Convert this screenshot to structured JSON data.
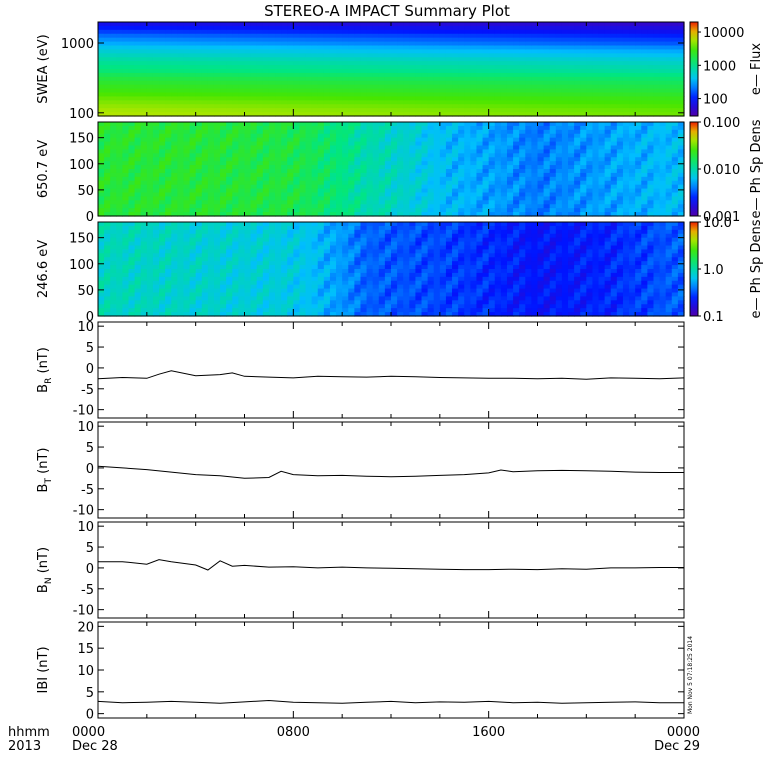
{
  "chart_data": {
    "title": "STEREO-A IMPACT Summary Plot",
    "x_axis": {
      "unit_label": "hhmm",
      "year_label": "2013",
      "ticks": [
        "0000",
        "0800",
        "1600",
        "0000"
      ],
      "date_labels": [
        "Dec 28",
        "",
        "",
        "Dec 29"
      ],
      "range_hours": [
        0,
        24
      ]
    },
    "stamp": "Mon Nov  5 07:18:25 2014",
    "panels": [
      {
        "type": "heatmap",
        "ylabel": "SWEA (eV)",
        "yscale": "log",
        "ylim": [
          90,
          2000
        ],
        "yticks": [
          "100",
          "1000"
        ],
        "ytick_values": [
          100,
          1000
        ],
        "colorbar": {
          "label": "e— Flux",
          "ticks": [
            "100",
            "1000",
            "10000"
          ],
          "tick_values": [
            100,
            1000,
            10000
          ],
          "range": [
            30,
            20000
          ],
          "scale": "log"
        },
        "description_values": {
          "energy_eV": [
            100,
            200,
            400,
            700,
            1000,
            1500,
            2000
          ],
          "flux_at_start": [
            6000,
            3000,
            1200,
            600,
            300,
            120,
            60
          ],
          "flux_at_end": [
            4000,
            2000,
            800,
            350,
            150,
            70,
            40
          ]
        }
      },
      {
        "type": "heatmap",
        "ylabel": "650.7 eV",
        "ylim": [
          0,
          180
        ],
        "yticks": [
          "0",
          "50",
          "100",
          "150"
        ],
        "ytick_values": [
          0,
          50,
          100,
          150
        ],
        "colorbar": {
          "label": "e— Ph Sp Dens",
          "ticks": [
            "0.001",
            "0.010",
            "0.100"
          ],
          "tick_values": [
            0.001,
            0.01,
            0.1
          ],
          "range": [
            0.001,
            0.1
          ],
          "scale": "log"
        },
        "description_values": {
          "hours": [
            0,
            4,
            8,
            11,
            14,
            18,
            21,
            24
          ],
          "density": [
            0.02,
            0.02,
            0.018,
            0.01,
            0.006,
            0.004,
            0.005,
            0.006
          ]
        }
      },
      {
        "type": "heatmap",
        "ylabel": "246.6 eV",
        "ylim": [
          0,
          180
        ],
        "yticks": [
          "0",
          "50",
          "100",
          "150"
        ],
        "ytick_values": [
          0,
          50,
          100,
          150
        ],
        "colorbar": {
          "label": "e— Ph Sp Dens",
          "ticks": [
            "0.1",
            "1.0",
            "10.0"
          ],
          "tick_values": [
            0.1,
            1,
            10
          ],
          "range": [
            0.1,
            10
          ],
          "scale": "log"
        },
        "description_values": {
          "hours": [
            0,
            4,
            8,
            11,
            14,
            18,
            21,
            24
          ],
          "density": [
            0.9,
            0.8,
            0.7,
            0.35,
            0.3,
            0.22,
            0.25,
            0.35
          ]
        }
      },
      {
        "type": "line",
        "ylabel_main": "B",
        "ylabel_sub": "R",
        "ylabel_unit": " (nT)",
        "ylim": [
          -12,
          11
        ],
        "yticks": [
          "-10",
          "-5",
          "0",
          "5",
          "10"
        ],
        "ytick_values": [
          -10,
          -5,
          0,
          5,
          10
        ],
        "x": [
          0,
          1,
          2,
          2.5,
          3,
          4,
          5,
          5.5,
          6,
          7,
          8,
          9,
          10,
          11,
          12,
          13,
          14,
          15,
          16,
          17,
          18,
          19,
          20,
          21,
          22,
          23,
          24
        ],
        "y": [
          -2.6,
          -2.3,
          -2.5,
          -1.5,
          -0.7,
          -1.9,
          -1.6,
          -1.2,
          -2.0,
          -2.2,
          -2.4,
          -2.0,
          -2.1,
          -2.2,
          -2.0,
          -2.1,
          -2.3,
          -2.4,
          -2.5,
          -2.5,
          -2.6,
          -2.5,
          -2.7,
          -2.4,
          -2.5,
          -2.6,
          -2.4
        ]
      },
      {
        "type": "line",
        "ylabel_main": "B",
        "ylabel_sub": "T",
        "ylabel_unit": " (nT)",
        "ylim": [
          -12,
          11
        ],
        "yticks": [
          "-10",
          "-5",
          "0",
          "5",
          "10"
        ],
        "ytick_values": [
          -10,
          -5,
          0,
          5,
          10
        ],
        "x": [
          0,
          1,
          2,
          3,
          4,
          5,
          6,
          7,
          7.5,
          8,
          9,
          10,
          11,
          12,
          13,
          14,
          15,
          16,
          16.5,
          17,
          18,
          19,
          20,
          21,
          22,
          23,
          24
        ],
        "y": [
          0.4,
          0.0,
          -0.4,
          -1.0,
          -1.6,
          -1.9,
          -2.5,
          -2.3,
          -0.8,
          -1.6,
          -1.9,
          -1.8,
          -2.0,
          -2.1,
          -2.0,
          -1.8,
          -1.6,
          -1.2,
          -0.5,
          -0.9,
          -0.7,
          -0.6,
          -0.7,
          -0.8,
          -1.0,
          -1.1,
          -1.1
        ]
      },
      {
        "type": "line",
        "ylabel_main": "B",
        "ylabel_sub": "N",
        "ylabel_unit": " (nT)",
        "ylim": [
          -12,
          11
        ],
        "yticks": [
          "-10",
          "-5",
          "0",
          "5",
          "10"
        ],
        "ytick_values": [
          -10,
          -5,
          0,
          5,
          10
        ],
        "x": [
          0,
          1,
          2,
          2.5,
          3,
          4,
          4.5,
          5,
          5.5,
          6,
          7,
          8,
          9,
          10,
          11,
          12,
          13,
          14,
          15,
          16,
          17,
          18,
          19,
          20,
          21,
          22,
          23,
          24
        ],
        "y": [
          1.5,
          1.5,
          0.9,
          2.0,
          1.5,
          0.7,
          -0.5,
          1.7,
          0.4,
          0.6,
          0.2,
          0.3,
          0.0,
          0.2,
          0.0,
          -0.1,
          -0.2,
          -0.3,
          -0.4,
          -0.4,
          -0.3,
          -0.4,
          -0.2,
          -0.3,
          0.0,
          0.0,
          0.1,
          0.1
        ]
      },
      {
        "type": "line",
        "ylabel_main": "IBI (nT)",
        "ylabel_sub": "",
        "ylabel_unit": "",
        "ylim": [
          -1,
          21
        ],
        "yticks": [
          "0",
          "5",
          "10",
          "15",
          "20"
        ],
        "ytick_values": [
          0,
          5,
          10,
          15,
          20
        ],
        "x": [
          0,
          1,
          2,
          3,
          4,
          5,
          6,
          7,
          8,
          9,
          10,
          11,
          12,
          13,
          14,
          15,
          16,
          17,
          18,
          19,
          20,
          21,
          22,
          23,
          24
        ],
        "y": [
          2.8,
          2.5,
          2.6,
          2.8,
          2.6,
          2.4,
          2.7,
          3.0,
          2.6,
          2.5,
          2.4,
          2.6,
          2.8,
          2.5,
          2.7,
          2.6,
          2.8,
          2.5,
          2.6,
          2.4,
          2.5,
          2.6,
          2.7,
          2.5,
          2.5
        ]
      }
    ]
  }
}
